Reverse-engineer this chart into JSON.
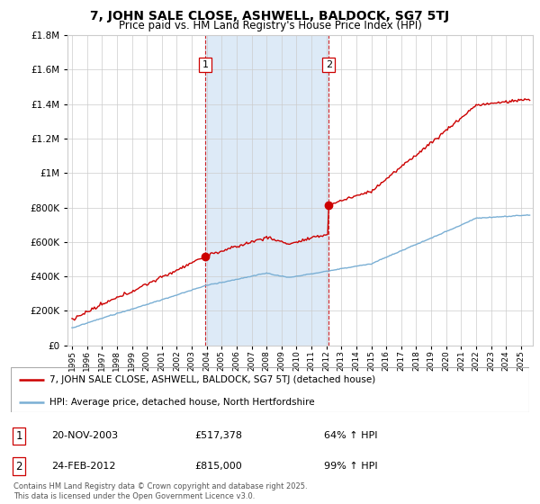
{
  "title": "7, JOHN SALE CLOSE, ASHWELL, BALDOCK, SG7 5TJ",
  "subtitle": "Price paid vs. HM Land Registry's House Price Index (HPI)",
  "legend_line1": "7, JOHN SALE CLOSE, ASHWELL, BALDOCK, SG7 5TJ (detached house)",
  "legend_line2": "HPI: Average price, detached house, North Hertfordshire",
  "footnote": "Contains HM Land Registry data © Crown copyright and database right 2025.\nThis data is licensed under the Open Government Licence v3.0.",
  "sale1_date": "20-NOV-2003",
  "sale1_price": "£517,378",
  "sale1_hpi": "64% ↑ HPI",
  "sale2_date": "24-FEB-2012",
  "sale2_price": "£815,000",
  "sale2_hpi": "99% ↑ HPI",
  "sale1_year": 2003.9,
  "sale1_value": 517378,
  "sale2_year": 2012.15,
  "sale2_value": 815000,
  "vline1_x": 2003.9,
  "vline2_x": 2012.15,
  "shade_color": "#ddeaf7",
  "price_line_color": "#cc0000",
  "hpi_line_color": "#7aafd4",
  "background_color": "#ffffff",
  "grid_color": "#cccccc",
  "ylim": [
    0,
    1800000
  ],
  "xlim_start": 1994.7,
  "xlim_end": 2025.8
}
